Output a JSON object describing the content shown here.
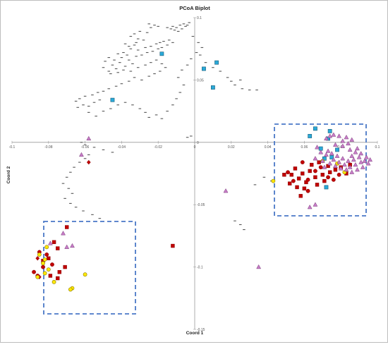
{
  "chart_data": {
    "type": "scatter",
    "title": "PCoA Biplot",
    "xlabel": "Coord 1",
    "ylabel": "Coord 2",
    "xlim": [
      -0.1,
      0.1
    ],
    "ylim": [
      -0.15,
      0.1
    ],
    "x_ticks": [
      -0.1,
      -0.08,
      -0.06,
      -0.04,
      -0.02,
      0,
      0.02,
      0.04,
      0.06,
      0.08,
      0.1
    ],
    "x_tick_labels": [
      "-0.1",
      "-0.08",
      "-0.06",
      "-0.04",
      "-0.02",
      "0",
      "0.02",
      "0.04",
      "0.06",
      "0.08",
      "0.1"
    ],
    "y_ticks": [
      0.1,
      0.05,
      0,
      -0.05,
      -0.1,
      -0.15
    ],
    "y_tick_labels": [
      "0.1",
      "0.05",
      "0",
      "-0.05",
      "-0.1",
      "-0.15"
    ],
    "grid": false,
    "legend": "none",
    "colors": {
      "dash": "#555555",
      "cyan_square": "#2aa9d8",
      "red_square": "#c00000",
      "red_circle": "#c00000",
      "red_diamond": "#c00000",
      "yellow_circle": "#ffe800",
      "pink_triangle": "#c77dc7",
      "box": "#4a78c7"
    },
    "series": [
      {
        "marker": "dash",
        "points": [
          [
            -0.01,
            0.092
          ],
          [
            -0.012,
            0.093
          ],
          [
            -0.008,
            0.094
          ],
          [
            -0.006,
            0.095
          ],
          [
            -0.005,
            0.093
          ],
          [
            -0.004,
            0.094
          ],
          [
            -0.003,
            0.096
          ],
          [
            -0.007,
            0.091
          ],
          [
            -0.009,
            0.089
          ],
          [
            -0.011,
            0.09
          ],
          [
            -0.013,
            0.091
          ],
          [
            -0.015,
            0.092
          ],
          [
            -0.02,
            0.093
          ],
          [
            -0.022,
            0.094
          ],
          [
            -0.025,
            0.095
          ],
          [
            -0.024,
            0.092
          ],
          [
            -0.026,
            0.088
          ],
          [
            -0.03,
            0.089
          ],
          [
            -0.033,
            0.087
          ],
          [
            -0.035,
            0.085
          ],
          [
            -0.031,
            0.083
          ],
          [
            -0.032,
            0.08
          ],
          [
            -0.028,
            0.082
          ],
          [
            -0.033,
            0.078
          ],
          [
            -0.036,
            0.077
          ],
          [
            -0.038,
            0.079
          ],
          [
            -0.035,
            0.075
          ],
          [
            -0.031,
            0.074
          ],
          [
            -0.027,
            0.076
          ],
          [
            -0.024,
            0.077
          ],
          [
            -0.021,
            0.079
          ],
          [
            -0.019,
            0.08
          ],
          [
            -0.017,
            0.081
          ],
          [
            -0.014,
            0.082
          ],
          [
            -0.012,
            0.08
          ],
          [
            -0.015,
            0.078
          ],
          [
            -0.018,
            0.076
          ],
          [
            -0.02,
            0.075
          ],
          [
            -0.023,
            0.073
          ],
          [
            -0.026,
            0.072
          ],
          [
            -0.029,
            0.07
          ],
          [
            -0.032,
            0.069
          ],
          [
            -0.037,
            0.07
          ],
          [
            -0.039,
            0.072
          ],
          [
            -0.042,
            0.071
          ],
          [
            -0.04,
            0.068
          ],
          [
            -0.036,
            0.066
          ],
          [
            -0.034,
            0.063
          ],
          [
            -0.038,
            0.061
          ],
          [
            -0.041,
            0.064
          ],
          [
            -0.044,
            0.066
          ],
          [
            -0.047,
            0.068
          ],
          [
            -0.049,
            0.065
          ],
          [
            -0.045,
            0.062
          ],
          [
            -0.043,
            0.059
          ],
          [
            -0.047,
            0.057
          ],
          [
            -0.05,
            0.06
          ],
          [
            -0.046,
            0.055
          ],
          [
            -0.042,
            0.056
          ],
          [
            -0.039,
            0.058
          ],
          [
            -0.035,
            0.057
          ],
          [
            -0.031,
            0.06
          ],
          [
            -0.027,
            0.062
          ],
          [
            -0.024,
            0.064
          ],
          [
            -0.021,
            0.066
          ],
          [
            -0.018,
            0.063
          ],
          [
            -0.016,
            0.06
          ],
          [
            -0.019,
            0.057
          ],
          [
            -0.022,
            0.055
          ],
          [
            -0.025,
            0.053
          ],
          [
            -0.029,
            0.05
          ],
          [
            -0.033,
            0.052
          ],
          [
            -0.036,
            0.049
          ],
          [
            -0.04,
            0.047
          ],
          [
            -0.043,
            0.045
          ],
          [
            -0.047,
            0.043
          ],
          [
            -0.05,
            0.041
          ],
          [
            -0.053,
            0.04
          ],
          [
            -0.056,
            0.038
          ],
          [
            -0.06,
            0.037
          ],
          [
            -0.063,
            0.035
          ],
          [
            -0.065,
            0.033
          ],
          [
            -0.061,
            0.03
          ],
          [
            -0.064,
            0.028
          ],
          [
            -0.058,
            0.029
          ],
          [
            -0.055,
            0.032
          ],
          [
            -0.052,
            0.034
          ],
          [
            -0.058,
            0.024
          ],
          [
            -0.054,
            0.021
          ],
          [
            -0.05,
            0.025
          ],
          [
            -0.046,
            0.027
          ],
          [
            -0.042,
            0.03
          ],
          [
            -0.038,
            0.032
          ],
          [
            -0.034,
            0.03
          ],
          [
            -0.03,
            0.027
          ],
          [
            -0.027,
            0.024
          ],
          [
            -0.025,
            0.02
          ],
          [
            -0.021,
            0.022
          ],
          [
            -0.018,
            0.019
          ],
          [
            -0.015,
            0.025
          ],
          [
            -0.012,
            0.03
          ],
          [
            -0.01,
            0.035
          ],
          [
            -0.008,
            0.04
          ],
          [
            -0.006,
            0.046
          ],
          [
            -0.009,
            0.052
          ],
          [
            -0.007,
            0.058
          ],
          [
            -0.004,
            0.062
          ],
          [
            -0.002,
            0.067
          ],
          [
            0.001,
            0.072
          ],
          [
            0.004,
            0.076
          ],
          [
            0.002,
            0.08
          ],
          [
            -0.001,
            0.085
          ],
          [
            0.003,
            0.07
          ],
          [
            0.006,
            0.064
          ],
          [
            0.01,
            0.06
          ],
          [
            0.014,
            0.057
          ],
          [
            0.018,
            0.052
          ],
          [
            0.022,
            0.046
          ],
          [
            0.026,
            0.043
          ],
          [
            0.03,
            0.042
          ],
          [
            0.034,
            0.042
          ],
          [
            0.02,
            0.049
          ],
          [
            0.025,
            0.05
          ],
          [
            -0.002,
            0.005
          ],
          [
            -0.004,
            0.004
          ],
          [
            -0.062,
            0.0
          ],
          [
            -0.06,
            -0.002
          ],
          [
            -0.055,
            -0.004
          ],
          [
            -0.05,
            -0.006
          ],
          [
            -0.045,
            -0.008
          ],
          [
            -0.058,
            -0.01
          ],
          [
            -0.06,
            -0.013
          ],
          [
            -0.063,
            -0.016
          ],
          [
            -0.066,
            -0.02
          ],
          [
            -0.068,
            -0.024
          ],
          [
            -0.07,
            -0.028
          ],
          [
            -0.072,
            -0.033
          ],
          [
            -0.069,
            -0.037
          ],
          [
            -0.067,
            -0.041
          ],
          [
            -0.071,
            -0.045
          ],
          [
            -0.068,
            -0.049
          ],
          [
            -0.065,
            -0.052
          ],
          [
            -0.061,
            -0.055
          ],
          [
            -0.056,
            -0.058
          ],
          [
            -0.052,
            -0.061
          ],
          [
            0.038,
            -0.028
          ],
          [
            0.042,
            -0.031
          ],
          [
            0.033,
            -0.034
          ],
          [
            0.025,
            -0.066
          ],
          [
            0.027,
            -0.07
          ],
          [
            0.022,
            -0.063
          ]
        ]
      },
      {
        "marker": "cyan_square",
        "points": [
          [
            -0.018,
            0.071
          ],
          [
            0.012,
            0.064
          ],
          [
            0.005,
            0.059
          ],
          [
            0.01,
            0.044
          ],
          [
            -0.045,
            0.034
          ],
          [
            0.066,
            0.011
          ],
          [
            0.074,
            0.009
          ],
          [
            0.063,
            0.005
          ],
          [
            0.073,
            0.003
          ],
          [
            0.078,
            -0.006
          ],
          [
            0.075,
            -0.012
          ],
          [
            0.072,
            -0.036
          ],
          [
            0.069,
            -0.005
          ],
          [
            0.071,
            -0.013
          ]
        ]
      },
      {
        "marker": "red_square",
        "points": [
          [
            -0.07,
            -0.068
          ],
          [
            -0.077,
            -0.08
          ],
          [
            -0.075,
            -0.085
          ],
          [
            -0.08,
            -0.093
          ],
          [
            -0.083,
            -0.095
          ],
          [
            -0.071,
            -0.1
          ],
          [
            -0.074,
            -0.104
          ],
          [
            -0.079,
            -0.107
          ],
          [
            -0.075,
            -0.109
          ],
          [
            -0.012,
            -0.083
          ],
          [
            0.055,
            -0.021
          ],
          [
            0.059,
            -0.025
          ],
          [
            0.063,
            -0.023
          ],
          [
            0.066,
            -0.028
          ],
          [
            0.07,
            -0.026
          ],
          [
            0.074,
            -0.024
          ],
          [
            0.077,
            -0.022
          ],
          [
            0.08,
            -0.02
          ],
          [
            0.071,
            -0.031
          ],
          [
            0.067,
            -0.034
          ],
          [
            0.061,
            -0.032
          ],
          [
            0.057,
            -0.029
          ],
          [
            0.053,
            -0.026
          ],
          [
            0.064,
            -0.018
          ],
          [
            0.068,
            -0.016
          ],
          [
            0.073,
            -0.019
          ],
          [
            0.06,
            -0.037
          ],
          [
            0.056,
            -0.036
          ],
          [
            0.052,
            -0.033
          ],
          [
            0.049,
            -0.026
          ],
          [
            0.085,
            -0.018
          ],
          [
            0.083,
            -0.025
          ],
          [
            0.058,
            -0.043
          ]
        ]
      },
      {
        "marker": "red_circle",
        "points": [
          [
            -0.085,
            -0.088
          ],
          [
            -0.081,
            -0.09
          ],
          [
            -0.083,
            -0.1
          ],
          [
            -0.088,
            -0.104
          ],
          [
            -0.086,
            -0.107
          ],
          [
            -0.078,
            -0.098
          ],
          [
            0.051,
            -0.024
          ],
          [
            0.054,
            -0.031
          ],
          [
            0.062,
            -0.03
          ],
          [
            0.066,
            -0.023
          ],
          [
            0.069,
            -0.02
          ],
          [
            0.073,
            -0.028
          ],
          [
            0.076,
            -0.03
          ],
          [
            0.079,
            -0.026
          ],
          [
            0.062,
            -0.039
          ],
          [
            0.059,
            -0.016
          ]
        ]
      },
      {
        "marker": "red_diamond",
        "points": [
          [
            -0.058,
            -0.016
          ],
          [
            -0.086,
            -0.093
          ],
          [
            -0.085,
            -0.108
          ]
        ]
      },
      {
        "marker": "yellow_circle",
        "points": [
          [
            -0.081,
            -0.084
          ],
          [
            -0.085,
            -0.09
          ],
          [
            -0.082,
            -0.094
          ],
          [
            -0.083,
            -0.097
          ],
          [
            -0.08,
            -0.102
          ],
          [
            -0.082,
            -0.105
          ],
          [
            -0.086,
            -0.108
          ],
          [
            -0.077,
            -0.112
          ],
          [
            -0.06,
            -0.106
          ],
          [
            -0.067,
            -0.117
          ],
          [
            -0.068,
            -0.118
          ],
          [
            0.043,
            -0.031
          ],
          [
            0.082,
            -0.024
          ],
          [
            0.07,
            -0.015
          ],
          [
            0.078,
            -0.017
          ]
        ]
      },
      {
        "marker": "pink_triangle",
        "points": [
          [
            -0.058,
            0.003
          ],
          [
            -0.062,
            -0.01
          ],
          [
            -0.079,
            -0.081
          ],
          [
            -0.07,
            -0.084
          ],
          [
            -0.072,
            -0.073
          ],
          [
            -0.067,
            -0.083
          ],
          [
            0.017,
            -0.039
          ],
          [
            0.035,
            -0.1
          ],
          [
            0.063,
            -0.052
          ],
          [
            0.066,
            -0.05
          ],
          [
            0.072,
            0.003
          ],
          [
            0.074,
            0.005
          ],
          [
            0.076,
            0.006
          ],
          [
            0.079,
            0.005
          ],
          [
            0.083,
            0.004
          ],
          [
            0.086,
            0.002
          ],
          [
            0.077,
            -0.002
          ],
          [
            0.081,
            -0.003
          ],
          [
            0.085,
            -0.006
          ],
          [
            0.088,
            -0.008
          ],
          [
            0.09,
            -0.012
          ],
          [
            0.087,
            -0.014
          ],
          [
            0.084,
            -0.015
          ],
          [
            0.081,
            -0.013
          ],
          [
            0.078,
            -0.011
          ],
          [
            0.075,
            -0.009
          ],
          [
            0.072,
            -0.01
          ],
          [
            0.069,
            -0.008
          ],
          [
            0.091,
            -0.016
          ],
          [
            0.088,
            -0.018
          ],
          [
            0.085,
            -0.02
          ],
          [
            0.082,
            -0.018
          ],
          [
            0.079,
            -0.016
          ],
          [
            0.076,
            -0.014
          ],
          [
            0.093,
            -0.015
          ],
          [
            0.095,
            -0.017
          ],
          [
            0.092,
            -0.02
          ],
          [
            0.089,
            -0.022
          ],
          [
            0.086,
            -0.024
          ],
          [
            0.083,
            -0.022
          ],
          [
            0.08,
            -0.021
          ],
          [
            0.077,
            -0.019
          ],
          [
            0.074,
            -0.017
          ],
          [
            0.07,
            -0.015
          ],
          [
            0.066,
            -0.013
          ],
          [
            0.071,
            -0.02
          ],
          [
            0.086,
            -0.011
          ],
          [
            0.089,
            -0.005
          ],
          [
            0.091,
            -0.009
          ],
          [
            0.094,
            -0.012
          ],
          [
            0.096,
            -0.014
          ],
          [
            0.073,
            -0.007
          ],
          [
            0.067,
            -0.004
          ],
          [
            0.081,
            0.001
          ],
          [
            0.084,
            -0.001
          ]
        ]
      }
    ]
  }
}
